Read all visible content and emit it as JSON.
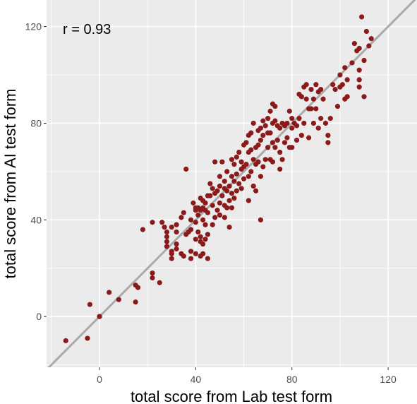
{
  "chart_data": {
    "type": "scatter",
    "title": "",
    "xlabel": "total score from Lab test form",
    "ylabel": "total score from AI test form",
    "xlim": [
      -22,
      132
    ],
    "ylim": [
      -21,
      131
    ],
    "x_ticks": [
      "0",
      "40",
      "80",
      "120"
    ],
    "y_ticks": [
      "0",
      "40",
      "80",
      "120"
    ],
    "grid": true,
    "annotation": "r = 0.93",
    "reference_line": {
      "type": "identity",
      "slope": 1,
      "intercept": 0,
      "color": "#aaaaaa"
    },
    "colors": {
      "panel": "#ebebeb",
      "grid": "#ffffff",
      "points": "#8b1a1a"
    },
    "series": [
      {
        "x": [
          -14,
          -5,
          -4,
          0,
          0,
          4,
          8,
          15,
          15,
          16,
          18,
          22,
          22,
          22,
          25,
          26,
          27,
          28,
          28,
          28,
          28,
          30,
          30,
          30,
          30,
          32,
          32,
          32,
          32,
          34,
          34,
          35,
          35,
          36,
          36,
          37,
          38,
          38,
          38,
          38,
          39,
          40,
          40,
          40,
          40,
          40,
          41,
          41,
          41,
          42,
          42,
          42,
          42,
          42,
          43,
          43,
          43,
          43,
          43,
          44,
          44,
          44,
          44,
          45,
          45,
          45,
          45,
          46,
          46,
          47,
          47,
          47,
          48,
          48,
          48,
          49,
          49,
          50,
          50,
          50,
          50,
          51,
          51,
          52,
          52,
          52,
          52,
          53,
          53,
          53,
          54,
          54,
          54,
          55,
          55,
          55,
          55,
          56,
          56,
          56,
          57,
          57,
          57,
          58,
          58,
          59,
          59,
          59,
          60,
          60,
          60,
          61,
          61,
          62,
          62,
          62,
          62,
          63,
          63,
          63,
          64,
          64,
          64,
          65,
          65,
          65,
          66,
          66,
          66,
          67,
          67,
          67,
          67,
          68,
          68,
          68,
          69,
          69,
          70,
          70,
          70,
          71,
          71,
          71,
          72,
          72,
          72,
          72,
          73,
          73,
          73,
          74,
          74,
          75,
          75,
          75,
          76,
          76,
          77,
          77,
          78,
          78,
          79,
          79,
          80,
          80,
          80,
          81,
          82,
          82,
          83,
          83,
          84,
          84,
          85,
          85,
          86,
          86,
          87,
          87,
          88,
          88,
          89,
          89,
          90,
          90,
          91,
          91,
          92,
          92,
          93,
          94,
          95,
          95,
          96,
          97,
          98,
          99,
          100,
          100,
          101,
          102,
          102,
          103,
          103,
          105,
          106,
          107,
          108,
          108,
          108,
          108,
          109,
          110,
          110,
          111,
          112,
          113
        ],
        "y": [
          -10,
          -9,
          5,
          0,
          0,
          10,
          7,
          6,
          13,
          12,
          36,
          39,
          18,
          16,
          14,
          39,
          37,
          33,
          35,
          29,
          31,
          27,
          26,
          24,
          37,
          30,
          28,
          35,
          38,
          26,
          41,
          25,
          43,
          61,
          34,
          35,
          24,
          27,
          36,
          40,
          47,
          44,
          39,
          45,
          32,
          26,
          45,
          42,
          35,
          49,
          44,
          33,
          31,
          25,
          48,
          45,
          40,
          30,
          26,
          47,
          44,
          38,
          32,
          50,
          43,
          34,
          24,
          55,
          50,
          53,
          46,
          38,
          64,
          51,
          41,
          52,
          44,
          58,
          54,
          47,
          42,
          64,
          50,
          56,
          53,
          46,
          41,
          60,
          52,
          45,
          54,
          48,
          37,
          65,
          58,
          51,
          45,
          63,
          56,
          49,
          66,
          59,
          52,
          68,
          55,
          64,
          61,
          53,
          71,
          62,
          57,
          72,
          63,
          75,
          68,
          58,
          48,
          76,
          69,
          60,
          80,
          65,
          54,
          70,
          63,
          52,
          77,
          71,
          64,
          78,
          73,
          58,
          40,
          81,
          75,
          62,
          79,
          65,
          82,
          76,
          70,
          85,
          76,
          65,
          88,
          80,
          72,
          64,
          87,
          81,
          70,
          79,
          73,
          78,
          68,
          61,
          80,
          65,
          79,
          72,
          80,
          74,
          85,
          70,
          82,
          78,
          70,
          80,
          79,
          73,
          92,
          82,
          91,
          75,
          95,
          80,
          96,
          90,
          86,
          74,
          94,
          86,
          90,
          80,
          96,
          86,
          93,
          78,
          94,
          82,
          90,
          80,
          75,
          72,
          82,
          96,
          94,
          87,
          95,
          100,
          96,
          103,
          90,
          98,
          91,
          105,
          113,
          110,
          111,
          102,
          98,
          95,
          124,
          91,
          106,
          118,
          112,
          115
        ]
      }
    ]
  }
}
